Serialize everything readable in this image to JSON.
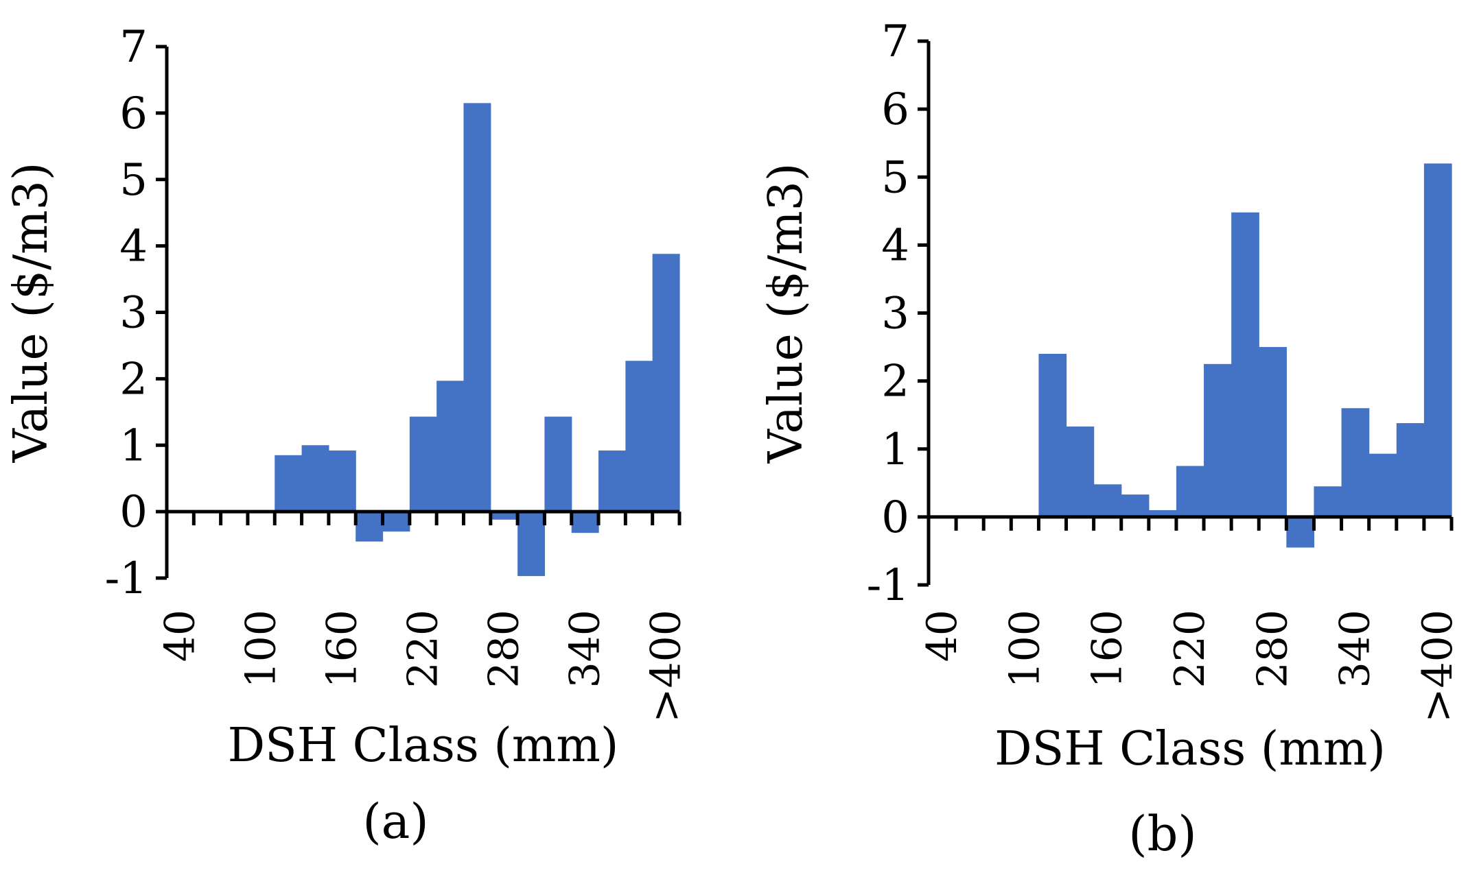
{
  "chart_data": [
    {
      "type": "bar",
      "panel_label": "(a)",
      "xlabel": "DSH Class (mm)",
      "ylabel": "Value ($/m3)",
      "ylim": [
        -1,
        7
      ],
      "yticks": [
        "-1",
        "0",
        "1",
        "2",
        "3",
        "4",
        "5",
        "6",
        "7"
      ],
      "xtick_labels": [
        "40",
        "100",
        "160",
        "220",
        "280",
        "340",
        ">400"
      ],
      "categories": [
        "40",
        "60",
        "80",
        "100",
        "120",
        "140",
        "160",
        "180",
        "200",
        "220",
        "240",
        "260",
        "280",
        "300",
        "320",
        "340",
        "360",
        "380",
        ">400"
      ],
      "values": [
        0,
        0,
        0,
        0,
        0.85,
        1.0,
        0.92,
        -0.45,
        -0.3,
        1.43,
        1.97,
        6.15,
        -0.12,
        -0.97,
        1.43,
        -0.32,
        0.92,
        2.27,
        3.88
      ],
      "color": "#4472c4"
    },
    {
      "type": "bar",
      "panel_label": "(b)",
      "xlabel": "DSH Class (mm)",
      "ylabel": "Value ($/m3)",
      "ylim": [
        -1,
        7
      ],
      "yticks": [
        "-1",
        "0",
        "1",
        "2",
        "3",
        "4",
        "5",
        "6",
        "7"
      ],
      "xtick_labels": [
        "40",
        "100",
        "160",
        "220",
        "280",
        "340",
        ">400"
      ],
      "categories": [
        "40",
        "60",
        "80",
        "100",
        "120",
        "140",
        "160",
        "180",
        "200",
        "220",
        "240",
        "260",
        "280",
        "300",
        "320",
        "340",
        "360",
        "380",
        ">400"
      ],
      "values": [
        0,
        0,
        0,
        0,
        2.4,
        1.33,
        0.48,
        0.33,
        0.1,
        0.75,
        2.25,
        4.48,
        2.5,
        -0.45,
        0.45,
        1.6,
        0.93,
        1.38,
        5.2
      ],
      "color": "#4472c4"
    }
  ]
}
